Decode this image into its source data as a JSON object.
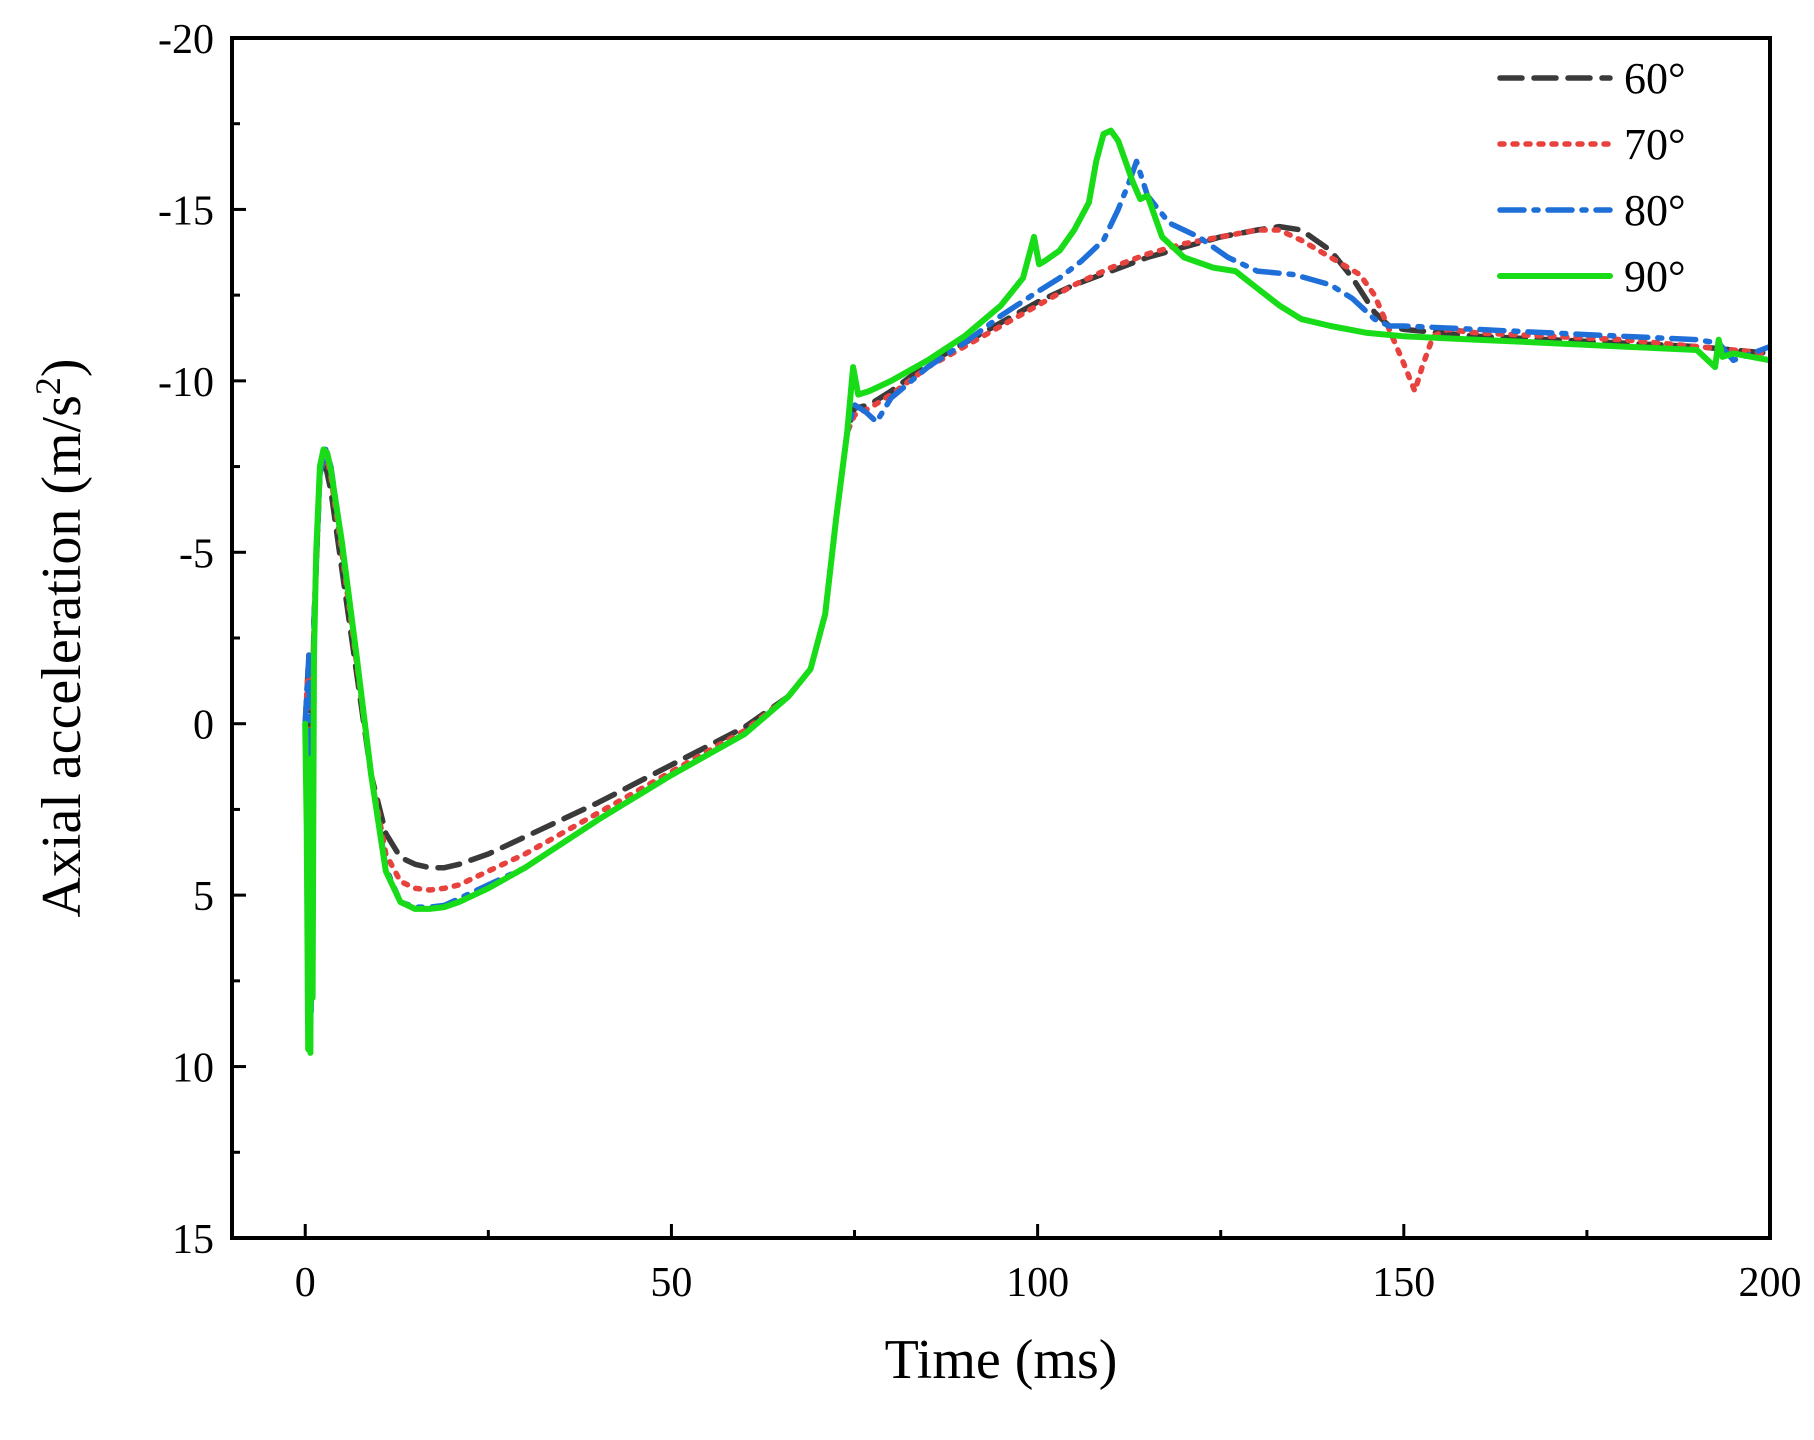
{
  "chart_data": {
    "type": "line",
    "title": "",
    "xlabel": "Time (ms)",
    "ylabel_main": "Axial acceleration (m/s",
    "ylabel_sup": "2",
    "ylabel_close": ")",
    "xlim": [
      -10,
      200
    ],
    "ylim": [
      15,
      -20
    ],
    "y_inverted": true,
    "grid": false,
    "legend_position": "top-right",
    "x_ticks": [
      0,
      50,
      100,
      150,
      200
    ],
    "x_tick_labels": [
      "0",
      "50",
      "100",
      "150",
      "200"
    ],
    "x_minor_ticks": [
      25,
      75,
      125,
      175
    ],
    "y_ticks": [
      -20,
      -15,
      -10,
      -5,
      0,
      5,
      10,
      15
    ],
    "y_tick_labels": [
      "-20",
      "-15",
      "-10",
      "-5",
      "0",
      "5",
      "10",
      "15"
    ],
    "y_minor_ticks": [
      -17.5,
      -12.5,
      -7.5,
      -2.5,
      2.5,
      7.5,
      12.5
    ],
    "series": [
      {
        "name": "60°",
        "color": "#3a3a3a",
        "style": "dashed",
        "x": [
          0,
          0.5,
          0.8,
          1.2,
          2,
          2.6,
          3.5,
          5,
          7,
          9,
          11,
          13,
          15,
          17,
          19,
          21,
          25,
          30,
          40,
          50,
          60,
          66,
          69,
          71,
          72.5,
          74,
          75,
          77,
          80,
          85,
          90,
          95,
          100,
          105,
          110,
          115,
          120,
          125,
          130,
          133,
          136,
          140,
          143,
          146,
          148,
          150,
          155,
          160,
          170,
          180,
          190,
          200
        ],
        "y": [
          0,
          -2,
          2,
          -3,
          -7.3,
          -7.7,
          -6.8,
          -4.5,
          -1.5,
          1.5,
          3.2,
          3.9,
          4.1,
          4.2,
          4.2,
          4.1,
          3.8,
          3.3,
          2.3,
          1.2,
          0.1,
          -0.8,
          -1.6,
          -3.2,
          -6,
          -8.5,
          -9.2,
          -9.3,
          -9.7,
          -10.5,
          -11.1,
          -11.7,
          -12.3,
          -12.8,
          -13.2,
          -13.6,
          -13.9,
          -14.2,
          -14.4,
          -14.5,
          -14.4,
          -13.8,
          -13,
          -12,
          -11.6,
          -11.5,
          -11.4,
          -11.3,
          -11.2,
          -11.1,
          -11,
          -10.8
        ]
      },
      {
        "name": "70°",
        "color": "#e8423e",
        "style": "dotted",
        "x": [
          0,
          0.5,
          0.8,
          1.2,
          2,
          2.8,
          3.5,
          5,
          7,
          9,
          11,
          13,
          15,
          17,
          19,
          21,
          25,
          30,
          40,
          50,
          60,
          66,
          69,
          71,
          72.5,
          74,
          75,
          77,
          80,
          85,
          90,
          95,
          100,
          105,
          110,
          115,
          120,
          125,
          130,
          133,
          136,
          140,
          144,
          146,
          148,
          150,
          151.5,
          152.5,
          154,
          156,
          160,
          170,
          180,
          190,
          200
        ],
        "y": [
          0,
          -2,
          6,
          -3,
          -7.3,
          -7.9,
          -7.2,
          -5,
          -1.8,
          1.5,
          3.8,
          4.6,
          4.8,
          4.85,
          4.8,
          4.7,
          4.3,
          3.8,
          2.6,
          1.4,
          0.2,
          -0.8,
          -1.6,
          -3.2,
          -6,
          -8.5,
          -9,
          -9.2,
          -9.6,
          -10.4,
          -11,
          -11.6,
          -12.2,
          -12.8,
          -13.3,
          -13.7,
          -14,
          -14.2,
          -14.4,
          -14.4,
          -14.1,
          -13.6,
          -13.1,
          -12.5,
          -11.5,
          -10.5,
          -9.7,
          -10.4,
          -11.3,
          -11.5,
          -11.4,
          -11.3,
          -11.2,
          -11,
          -10.8
        ]
      },
      {
        "name": "80°",
        "color": "#1f6fd9",
        "style": "dashdot",
        "x": [
          0,
          0.5,
          0.8,
          1.2,
          2,
          2.8,
          3.5,
          5,
          7,
          9,
          11,
          13,
          15,
          17,
          19,
          21,
          25,
          30,
          40,
          50,
          60,
          66,
          69,
          71,
          72.5,
          74,
          75,
          76.5,
          78,
          80,
          85,
          90,
          95,
          100,
          103,
          106,
          109,
          111,
          112.5,
          113.5,
          115,
          118,
          122,
          126,
          130,
          135,
          140,
          143,
          146,
          148,
          150,
          160,
          170,
          180,
          190,
          193,
          195,
          200
        ],
        "y": [
          0,
          -2,
          8.5,
          -3,
          -7.3,
          -8,
          -7.5,
          -5.2,
          -2,
          1.5,
          4.2,
          5.2,
          5.35,
          5.35,
          5.3,
          5.1,
          4.7,
          4.2,
          2.8,
          1.5,
          0.3,
          -0.8,
          -1.6,
          -3.2,
          -6,
          -8.5,
          -9.3,
          -9.1,
          -8.8,
          -9.5,
          -10.4,
          -11.1,
          -11.9,
          -12.6,
          -13,
          -13.5,
          -14.1,
          -15,
          -15.8,
          -16.4,
          -15.4,
          -14.6,
          -14.2,
          -13.6,
          -13.2,
          -13.1,
          -12.8,
          -12.4,
          -11.8,
          -11.6,
          -11.6,
          -11.5,
          -11.4,
          -11.3,
          -11.2,
          -11.1,
          -10.6,
          -11
        ]
      },
      {
        "name": "90°",
        "color": "#18dc18",
        "style": "solid",
        "x": [
          0,
          0.2,
          0.4,
          0.55,
          0.7,
          0.85,
          1,
          1.2,
          1.5,
          2,
          2.5,
          3,
          3.5,
          5,
          7,
          9,
          11,
          13,
          15,
          17,
          19,
          21,
          25,
          30,
          40,
          50,
          60,
          66,
          69,
          71,
          72.5,
          74,
          74.8,
          75.5,
          77,
          80,
          85,
          90,
          95,
          98,
          99.5,
          100.2,
          101,
          103,
          105,
          107,
          108,
          109,
          110,
          111,
          112,
          113,
          114,
          115,
          117,
          120,
          124,
          127,
          130,
          133,
          136,
          140,
          145,
          150,
          160,
          170,
          180,
          190,
          192.5,
          193,
          193.5,
          195,
          200
        ],
        "y": [
          0,
          3,
          9.5,
          4,
          9.6,
          1,
          8,
          -2,
          -5,
          -7.5,
          -8,
          -7.9,
          -7.4,
          -5.3,
          -2,
          1.5,
          4.3,
          5.2,
          5.4,
          5.4,
          5.35,
          5.2,
          4.8,
          4.2,
          2.8,
          1.5,
          0.3,
          -0.8,
          -1.6,
          -3.2,
          -6,
          -8.5,
          -10.4,
          -9.6,
          -9.7,
          -10,
          -10.6,
          -11.3,
          -12.2,
          -13,
          -14.2,
          -13.4,
          -13.5,
          -13.8,
          -14.4,
          -15.2,
          -16.4,
          -17.2,
          -17.3,
          -17,
          -16.4,
          -15.8,
          -15.3,
          -15.4,
          -14.2,
          -13.6,
          -13.3,
          -13.2,
          -12.7,
          -12.2,
          -11.8,
          -11.6,
          -11.4,
          -11.3,
          -11.2,
          -11.1,
          -11,
          -10.9,
          -10.4,
          -11.2,
          -10.7,
          -10.8,
          -10.6
        ]
      }
    ]
  }
}
